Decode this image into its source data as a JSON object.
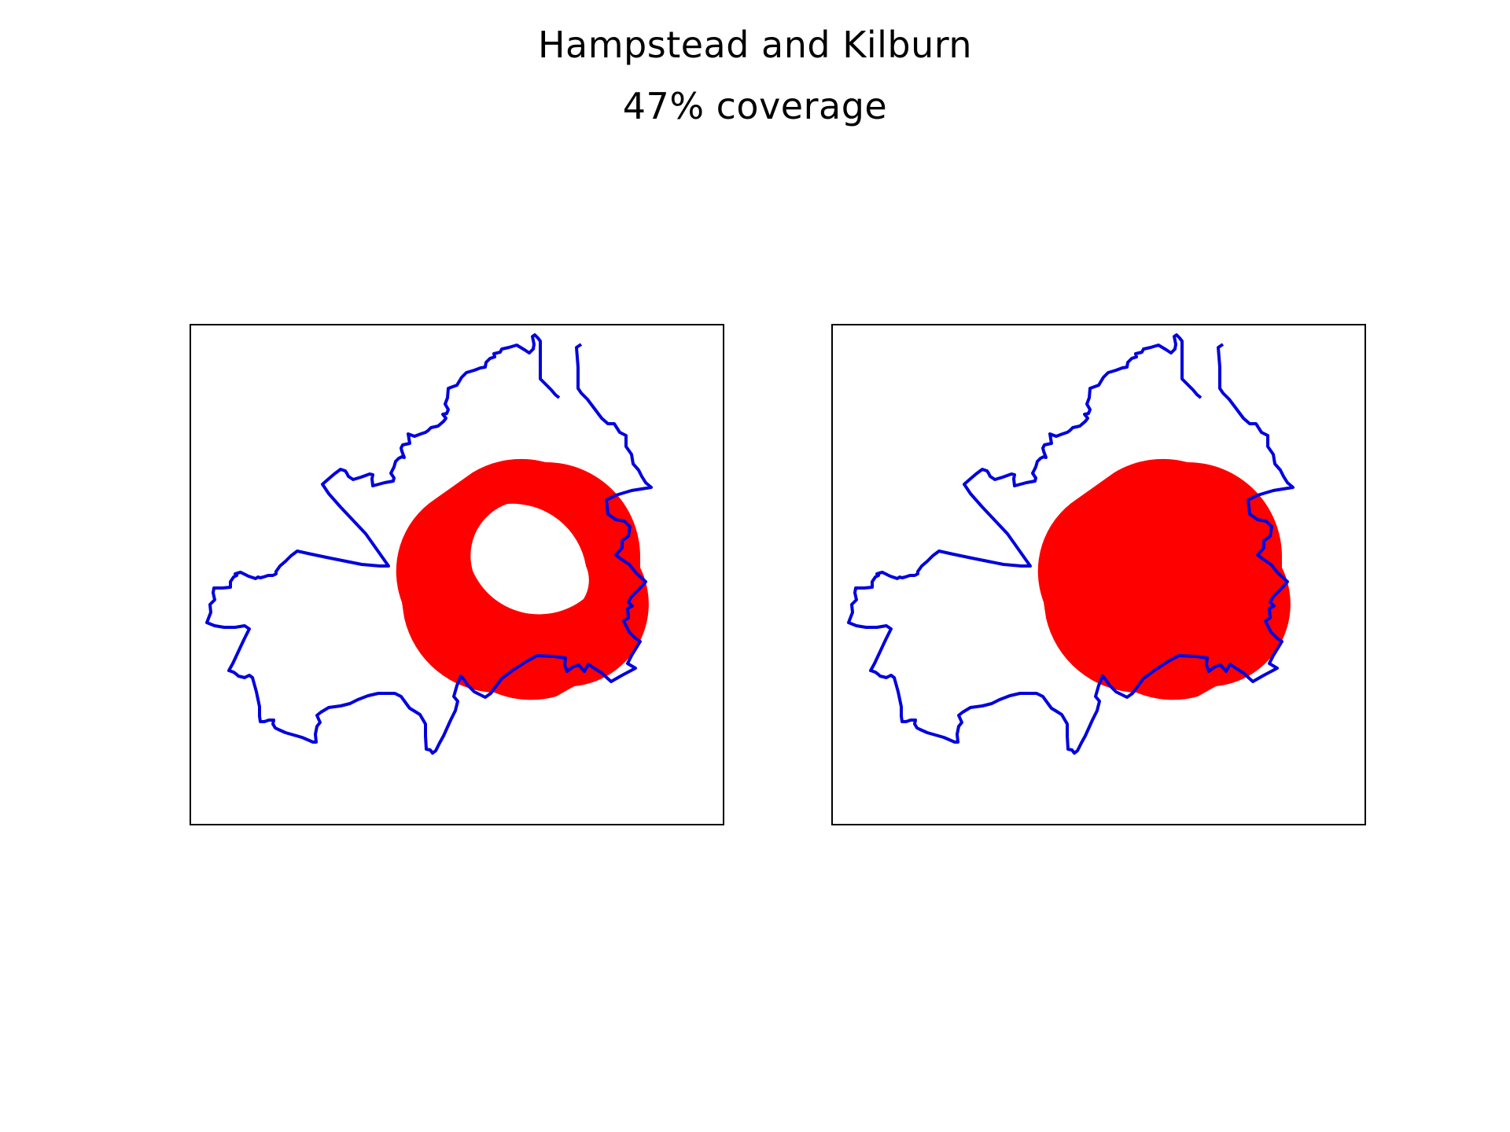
{
  "figure": {
    "title": "Hampstead and Kilburn",
    "subtitle": "47% coverage"
  },
  "colors": {
    "boundary": "#0000dd",
    "coverage": "#ff0000",
    "frame": "#000000",
    "background": "#ffffff"
  },
  "panels": [
    {
      "name": "left-map",
      "coverage_shape": "ring-with-hole"
    },
    {
      "name": "right-map",
      "coverage_shape": "filled"
    }
  ]
}
